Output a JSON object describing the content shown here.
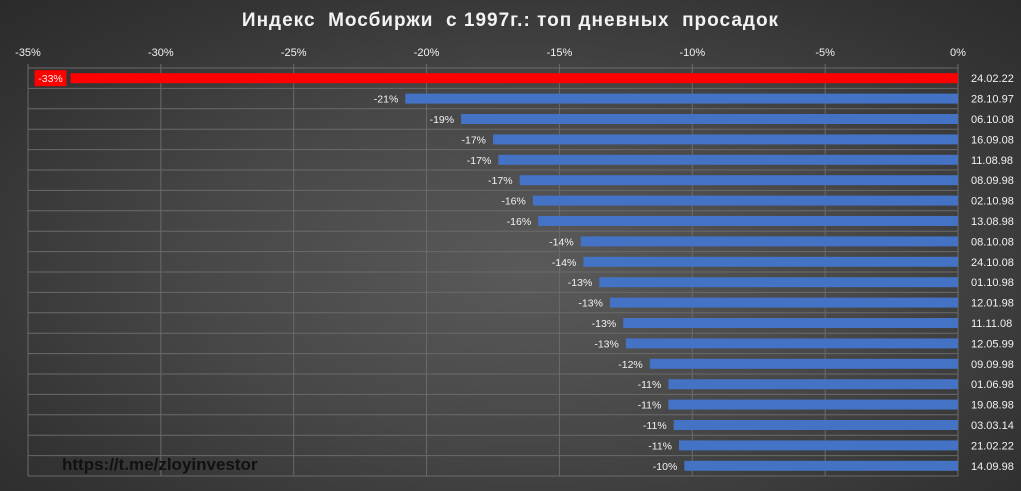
{
  "chart_data": {
    "type": "bar",
    "orientation": "horizontal",
    "title": "Индекс  Мосбиржи  с 1997г.: топ дневных  просадок",
    "x_ticks": [
      "-35%",
      "-30%",
      "-25%",
      "-20%",
      "-15%",
      "-10%",
      "-5%",
      "0%"
    ],
    "xlim": [
      -35,
      0
    ],
    "grid": true,
    "categories": [
      "24.02.22",
      "28.10.97",
      "06.10.08",
      "16.09.08",
      "11.08.98",
      "08.09.98",
      "02.10.98",
      "13.08.98",
      "08.10.08",
      "24.10.08",
      "01.10.98",
      "12.01.98",
      "11.11.08",
      "12.05.99",
      "09.09.98",
      "01.06.98",
      "19.08.98",
      "03.03.14",
      "21.02.22",
      "14.09.98"
    ],
    "values": [
      -33.4,
      -20.8,
      -18.7,
      -17.5,
      -17.3,
      -16.5,
      -16.0,
      -15.8,
      -14.2,
      -14.1,
      -13.5,
      -13.1,
      -12.6,
      -12.5,
      -11.6,
      -10.9,
      -10.9,
      -10.7,
      -10.5,
      -10.3
    ],
    "data_labels": [
      "-33%",
      "-21%",
      "-19%",
      "-17%",
      "-17%",
      "-17%",
      "-16%",
      "-16%",
      "-14%",
      "-14%",
      "-13%",
      "-13%",
      "-13%",
      "-13%",
      "-12%",
      "-11%",
      "-11%",
      "-11%",
      "-11%",
      "-10%"
    ],
    "colors": {
      "highlight": "#ff0000",
      "bar": "#4472c4",
      "label_highlight_bg": "#ff0000",
      "grid": "#6a6a6a",
      "text": "#f2f2f2"
    }
  },
  "watermark": "https://t.me/zloyinvestor"
}
